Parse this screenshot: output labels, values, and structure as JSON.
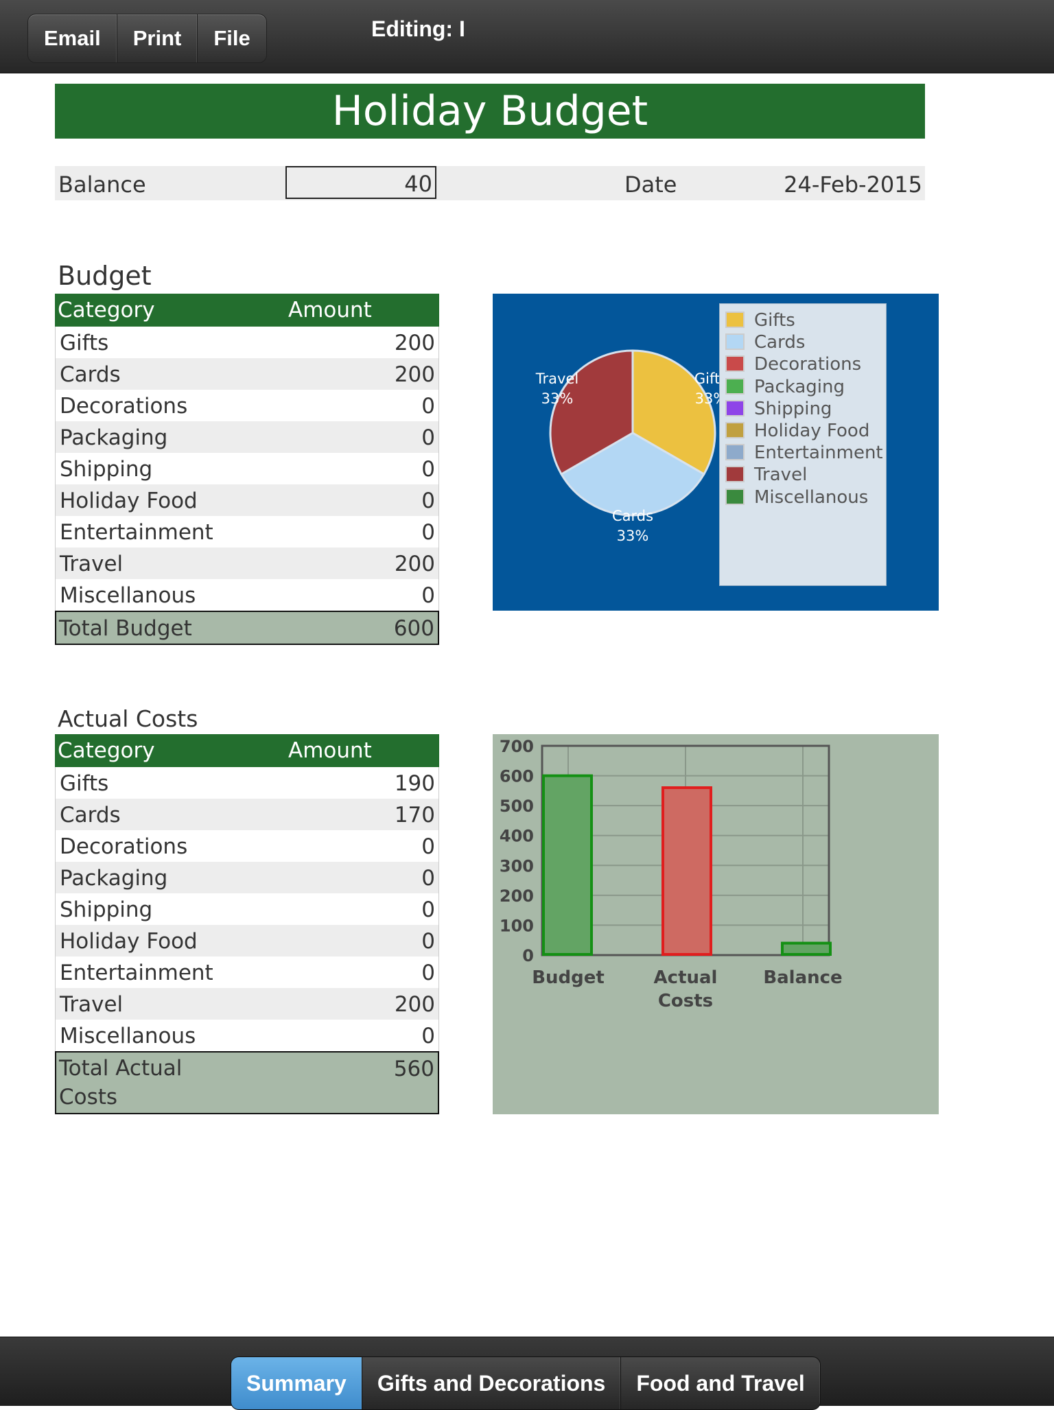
{
  "toolbar": {
    "buttons": [
      "Email",
      "Print",
      "File"
    ],
    "editing": "Editing: I"
  },
  "sheet": {
    "title": "Holiday Budget",
    "balance_label": "Balance",
    "balance_value": "40",
    "date_label": "Date",
    "date_value": "24-Feb-2015"
  },
  "budget": {
    "section_title": "Budget",
    "col_category": "Category",
    "col_amount": "Amount",
    "rows": [
      {
        "category": "Gifts",
        "amount": "200"
      },
      {
        "category": "Cards",
        "amount": "200"
      },
      {
        "category": "Decorations",
        "amount": "0"
      },
      {
        "category": "Packaging",
        "amount": "0"
      },
      {
        "category": "Shipping",
        "amount": "0"
      },
      {
        "category": "Holiday Food",
        "amount": "0"
      },
      {
        "category": "Entertainment",
        "amount": "0"
      },
      {
        "category": "Travel",
        "amount": "200"
      },
      {
        "category": "Miscellanous",
        "amount": "0"
      }
    ],
    "total_label": "Total Budget",
    "total_value": "600"
  },
  "actual": {
    "section_title": "Actual Costs",
    "col_category": "Category",
    "col_amount": "Amount",
    "rows": [
      {
        "category": "Gifts",
        "amount": "190"
      },
      {
        "category": "Cards",
        "amount": "170"
      },
      {
        "category": "Decorations",
        "amount": "0"
      },
      {
        "category": "Packaging",
        "amount": "0"
      },
      {
        "category": "Shipping",
        "amount": "0"
      },
      {
        "category": "Holiday Food",
        "amount": "0"
      },
      {
        "category": "Entertainment",
        "amount": "0"
      },
      {
        "category": "Travel",
        "amount": "200"
      },
      {
        "category": "Miscellanous",
        "amount": "0"
      }
    ],
    "total_label_line1": "Total Actual",
    "total_label_line2": "Costs",
    "total_value": "560"
  },
  "chart_data": [
    {
      "type": "pie",
      "legend_position": "top-right",
      "slices": [
        {
          "label": "Gifts",
          "value": 200,
          "percent_label": "33%",
          "color": "#ecc140"
        },
        {
          "label": "Cards",
          "value": 200,
          "percent_label": "33%",
          "color": "#b3d7f4"
        },
        {
          "label": "Travel",
          "value": 200,
          "percent_label": "33%",
          "color": "#a13a3c"
        }
      ],
      "legend": [
        {
          "label": "Gifts",
          "color": "#ecc140"
        },
        {
          "label": "Cards",
          "color": "#b3d7f4"
        },
        {
          "label": "Decorations",
          "color": "#c94a4a"
        },
        {
          "label": "Packaging",
          "color": "#4caf50"
        },
        {
          "label": "Shipping",
          "color": "#8e44e8"
        },
        {
          "label": "Holiday Food",
          "color": "#c0a040"
        },
        {
          "label": "Entertainment",
          "color": "#8eaacb"
        },
        {
          "label": "Travel",
          "color": "#a13a3c"
        },
        {
          "label": "Miscellanous",
          "color": "#3a8a3e"
        }
      ]
    },
    {
      "type": "bar",
      "categories": [
        "Budget",
        "Actual Costs",
        "Balance"
      ],
      "category_lines": [
        [
          "Budget"
        ],
        [
          "Actual",
          "Costs"
        ],
        [
          "Balance"
        ]
      ],
      "values": [
        600,
        560,
        40
      ],
      "bar_fill": [
        "#63a464",
        "#ce6a62",
        "#63a464"
      ],
      "bar_stroke": [
        "#149014",
        "#e01e1e",
        "#149014"
      ],
      "ylim": [
        0,
        700
      ],
      "yticks": [
        "0",
        "100",
        "200",
        "300",
        "400",
        "500",
        "600",
        "700"
      ],
      "grid": true
    }
  ],
  "bottom_tabs": {
    "items": [
      "Summary",
      "Gifts and Decorations",
      "Food and Travel"
    ],
    "active": "Summary"
  }
}
